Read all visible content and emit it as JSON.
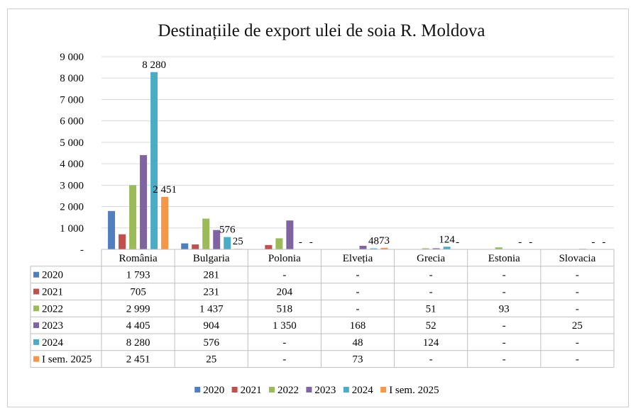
{
  "chart_data": {
    "type": "bar",
    "title": "Destinațiile de export ulei de soia R. Moldova",
    "xlabel": "",
    "ylabel": "",
    "ylim": [
      0,
      9000
    ],
    "y_ticks": [
      {
        "value": 0,
        "label": "-"
      },
      {
        "value": 1000,
        "label": "1 000"
      },
      {
        "value": 2000,
        "label": "2 000"
      },
      {
        "value": 3000,
        "label": "3 000"
      },
      {
        "value": 4000,
        "label": "4 000"
      },
      {
        "value": 5000,
        "label": "5 000"
      },
      {
        "value": 6000,
        "label": "6 000"
      },
      {
        "value": 7000,
        "label": "7 000"
      },
      {
        "value": 8000,
        "label": "8 000"
      },
      {
        "value": 9000,
        "label": "9 000"
      }
    ],
    "grid": true,
    "legend_position": "bottom",
    "categories": [
      "România",
      "Bulgaria",
      "Polonia",
      "Elveția",
      "Grecia",
      "Estonia",
      "Slovacia"
    ],
    "series": [
      {
        "name": "2020",
        "color": "#4f7fbf",
        "values": [
          1793,
          281,
          0,
          0,
          0,
          0,
          0
        ],
        "table": [
          "1 793",
          "281",
          "-",
          "-",
          "-",
          "-",
          "-"
        ]
      },
      {
        "name": "2021",
        "color": "#c0504d",
        "values": [
          705,
          231,
          204,
          0,
          0,
          0,
          0
        ],
        "table": [
          "705",
          "231",
          "204",
          "-",
          "-",
          "-",
          "-"
        ]
      },
      {
        "name": "2022",
        "color": "#9bbb59",
        "values": [
          2999,
          1437,
          518,
          0,
          51,
          93,
          0
        ],
        "table": [
          "2 999",
          "1 437",
          "518",
          "-",
          "51",
          "93",
          "-"
        ]
      },
      {
        "name": "2023",
        "color": "#8064a2",
        "values": [
          4405,
          904,
          1350,
          168,
          52,
          0,
          25
        ],
        "table": [
          "4 405",
          "904",
          "1 350",
          "168",
          "52",
          "-",
          "25"
        ]
      },
      {
        "name": "2024",
        "color": "#4bacc6",
        "values": [
          8280,
          576,
          0,
          48,
          124,
          0,
          0
        ],
        "table": [
          "8 280",
          "576",
          "-",
          "48",
          "124",
          "-",
          "-"
        ]
      },
      {
        "name": "I sem. 2025",
        "color": "#f79646",
        "values": [
          2451,
          25,
          0,
          73,
          0,
          0,
          0
        ],
        "table": [
          "2 451",
          "25",
          "-",
          "73",
          "-",
          "-",
          "-"
        ]
      }
    ],
    "bar_labels": [
      {
        "series": 4,
        "category": 0,
        "text": "8 280"
      },
      {
        "series": 5,
        "category": 0,
        "text": "2 451"
      },
      {
        "series": 4,
        "category": 1,
        "text": "576"
      },
      {
        "series": 5,
        "category": 1,
        "text": "25"
      },
      {
        "series": 4,
        "category": 2,
        "text": "-"
      },
      {
        "series": 5,
        "category": 2,
        "text": "-"
      },
      {
        "series": 4,
        "category": 3,
        "text": "48"
      },
      {
        "series": 5,
        "category": 3,
        "text": "73"
      },
      {
        "series": 4,
        "category": 4,
        "text": "124"
      },
      {
        "series": 5,
        "category": 4,
        "text": "-"
      },
      {
        "series": 4,
        "category": 5,
        "text": "-"
      },
      {
        "series": 5,
        "category": 5,
        "text": "-"
      },
      {
        "series": 4,
        "category": 6,
        "text": "-"
      },
      {
        "series": 5,
        "category": 6,
        "text": "-"
      }
    ]
  }
}
